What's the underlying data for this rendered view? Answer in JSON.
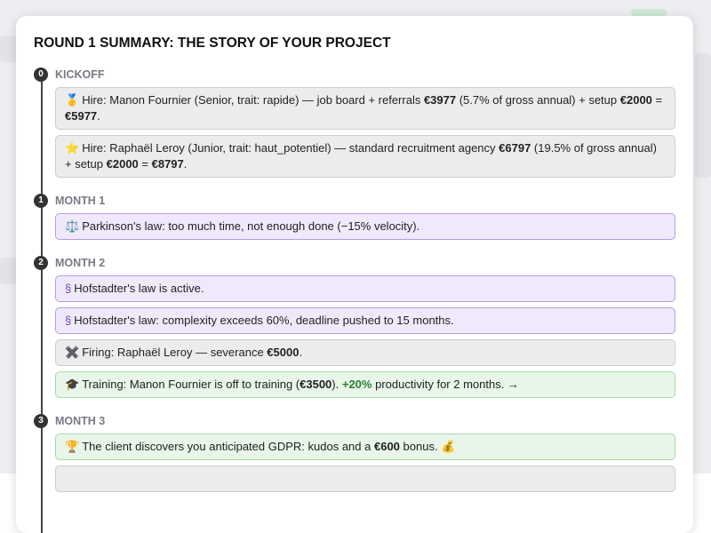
{
  "dialog": {
    "title": "ROUND 1 SUMMARY: THE STORY OF YOUR PROJECT",
    "sections": [
      {
        "index": "0",
        "label": "KICKOFF",
        "events": [
          {
            "kind": "gray",
            "icon": "🥇",
            "parts": [
              {
                "text": "Hire: Manon Fournier (Senior, trait: rapide) — job board + referrals "
              },
              {
                "text": "€3977",
                "weight": "bold"
              },
              {
                "text": " (5.7% of gross annual) + setup "
              },
              {
                "text": "€2000",
                "weight": "bold"
              },
              {
                "text": " = "
              },
              {
                "text": "€5977",
                "weight": "bold"
              },
              {
                "text": "."
              }
            ]
          },
          {
            "kind": "gray",
            "icon": "⭐",
            "parts": [
              {
                "text": "Hire: Raphaël Leroy (Junior, trait: haut_potentiel) — standard recruitment agency "
              },
              {
                "text": "€6797",
                "weight": "bold"
              },
              {
                "text": " (19.5% of gross annual) + setup "
              },
              {
                "text": "€2000",
                "weight": "bold"
              },
              {
                "text": " = "
              },
              {
                "text": "€8797",
                "weight": "bold"
              },
              {
                "text": "."
              }
            ]
          }
        ]
      },
      {
        "index": "1",
        "label": "MONTH 1",
        "events": [
          {
            "kind": "purple",
            "icon": "⚖️",
            "parts": [
              {
                "text": "Parkinson's law: too much time, not enough done (−15% velocity)."
              }
            ]
          }
        ]
      },
      {
        "index": "2",
        "label": "MONTH 2",
        "events": [
          {
            "kind": "purple",
            "icon": "§",
            "parts": [
              {
                "text": "Hofstadter's law is active."
              }
            ]
          },
          {
            "kind": "purple",
            "icon": "§",
            "parts": [
              {
                "text": "Hofstadter's law: complexity exceeds 60%, deadline pushed to 15 months."
              }
            ]
          },
          {
            "kind": "gray",
            "icon": "✖️",
            "parts": [
              {
                "text": "Firing: Raphaël Leroy — severance "
              },
              {
                "text": "€5000",
                "weight": "bold"
              },
              {
                "text": "."
              }
            ]
          },
          {
            "kind": "green",
            "icon": "🎓",
            "parts": [
              {
                "text": "Training: Manon Fournier is off to training ("
              },
              {
                "text": "€3500",
                "weight": "bold"
              },
              {
                "text": "). "
              },
              {
                "text": "+20%",
                "weight": "bold",
                "color": "#2e7d32"
              },
              {
                "text": " productivity for 2 months. →"
              }
            ]
          }
        ]
      },
      {
        "index": "3",
        "label": "MONTH 3",
        "events": [
          {
            "kind": "green",
            "icon": "🏆",
            "parts": [
              {
                "text": "The client discovers you anticipated GDPR: kudos and a "
              },
              {
                "text": "€600",
                "weight": "bold"
              },
              {
                "text": " bonus. 💰"
              }
            ]
          }
        ]
      }
    ]
  }
}
